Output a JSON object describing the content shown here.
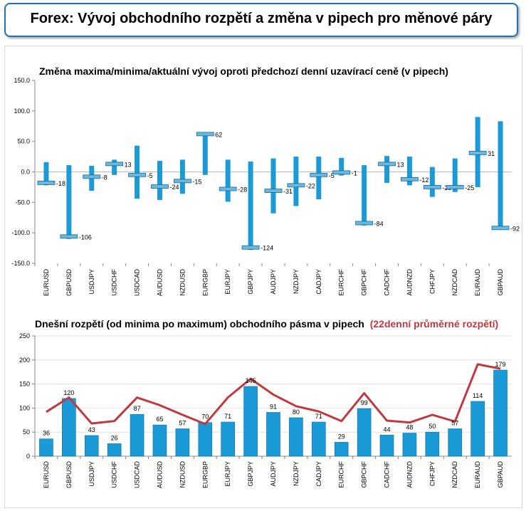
{
  "header": {
    "title": "Forex: Vývoj obchodního rozpětí a změna v pipech pro měnové páry"
  },
  "colors": {
    "bar": "#1a9ad6",
    "bar_dark": "#0b6fa3",
    "line": "#c0393f",
    "header_border": "#1f73b7"
  },
  "chart_data": [
    {
      "type": "bar",
      "title": "Změna maxima/minima/aktuální vývoj oproti předchozí denní uzavírací ceně (v pipech)",
      "ylim": [
        -150,
        150
      ],
      "yticks": [
        "150.0",
        "100.0",
        "50.0",
        "0.0",
        "-50.0",
        "-100.0",
        "-150.0"
      ],
      "categories": [
        "EURUSD",
        "GBPUSD",
        "USDJPY",
        "USDCHF",
        "USDCAD",
        "AUDUSD",
        "NZDUSD",
        "EURGBP",
        "EURJPY",
        "GBPJPY",
        "AUDJPY",
        "NZDJPY",
        "CADJPY",
        "EURCHF",
        "GBPCHF",
        "CADCHF",
        "AUDNZD",
        "CHFJPY",
        "NZDCAD",
        "EURAUD",
        "GBPAUD"
      ],
      "high": [
        16,
        11,
        10,
        20,
        43,
        18,
        20,
        64,
        20,
        17,
        22,
        25,
        25,
        23,
        11,
        26,
        25,
        8,
        22,
        90,
        83
      ],
      "low": [
        -22,
        -110,
        -31,
        -5,
        -44,
        -46,
        -36,
        -5,
        -49,
        -128,
        -68,
        -56,
        -45,
        -6,
        -88,
        -18,
        -22,
        -41,
        -33,
        -25,
        -94
      ],
      "current": [
        -18,
        -106,
        -8,
        13,
        -5,
        -24,
        -15,
        62,
        -28,
        -124,
        -31,
        -22,
        -5,
        -1,
        -84,
        13,
        -12,
        -25,
        -25,
        31,
        -92
      ],
      "labels": [
        "-18",
        "-106",
        "-8",
        "13",
        "-5",
        "-24",
        "-15",
        "62",
        "-28",
        "-124",
        "-31",
        "-22",
        "-5",
        "-1",
        "-84",
        "13",
        "-12",
        "-25",
        "-25",
        "31",
        "-92"
      ]
    },
    {
      "type": "bar",
      "title_main": "Dnešní rozpětí (od minima po maximum) obchodního pásma v pipech",
      "title_highlight": "(22denní průměrné rozpětí)",
      "ylim": [
        0,
        250
      ],
      "yticks": [
        "250",
        "200",
        "150",
        "100",
        "50",
        "0"
      ],
      "categories": [
        "EURUSD",
        "GBPUSD",
        "USDJPY",
        "USDCHF",
        "USDCAD",
        "AUDUSD",
        "NZDUSD",
        "EURGBP",
        "EURJPY",
        "GBPJPY",
        "AUDJPY",
        "NZDJPY",
        "CADJPY",
        "EURCHF",
        "GBPCHF",
        "CADCHF",
        "AUDNZD",
        "CHFJPY",
        "NZDCAD",
        "EURAUD",
        "GBPAUD"
      ],
      "values": [
        36,
        120,
        43,
        26,
        87,
        65,
        57,
        70,
        71,
        145,
        91,
        80,
        71,
        29,
        99,
        44,
        48,
        50,
        57,
        114,
        179
      ],
      "labels": [
        "36",
        "120",
        "43",
        "26",
        "87",
        "65",
        "57",
        "70",
        "71",
        "145",
        "91",
        "80",
        "71",
        "29",
        "99",
        "44",
        "48",
        "50",
        "57",
        "114",
        "179"
      ],
      "avg22": [
        92,
        122,
        68,
        73,
        122,
        106,
        86,
        67,
        122,
        161,
        128,
        104,
        93,
        73,
        131,
        74,
        70,
        86,
        72,
        191,
        182
      ]
    }
  ]
}
